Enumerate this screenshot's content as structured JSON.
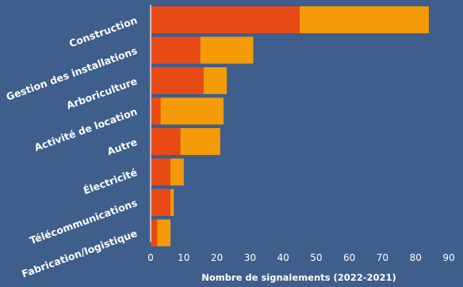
{
  "chart_data": {
    "type": "bar",
    "orientation": "horizontal",
    "stacked": true,
    "categories": [
      "Construction",
      "Gestion des installations",
      "Arboriculture",
      "Activité de location",
      "Autre",
      "Électricité",
      "Télécommunications",
      "Fabrication/logistique"
    ],
    "series": [
      {
        "values": [
          45,
          15,
          16,
          3,
          9,
          6,
          6,
          2
        ],
        "color": "#e84a16"
      },
      {
        "values": [
          39,
          16,
          7,
          19,
          12,
          4,
          1,
          4
        ],
        "color": "#f59a08"
      }
    ],
    "xlabel": "Nombre de signalements (2022-2021)",
    "ylabel": "",
    "title": "",
    "xlim": [
      0,
      90
    ],
    "xticks": [
      0,
      10,
      20,
      30,
      40,
      50,
      60,
      70,
      80,
      90
    ],
    "grid": false,
    "legend": "none"
  },
  "colors": {
    "background": "#3e5e8c",
    "text": "#ffffff"
  }
}
